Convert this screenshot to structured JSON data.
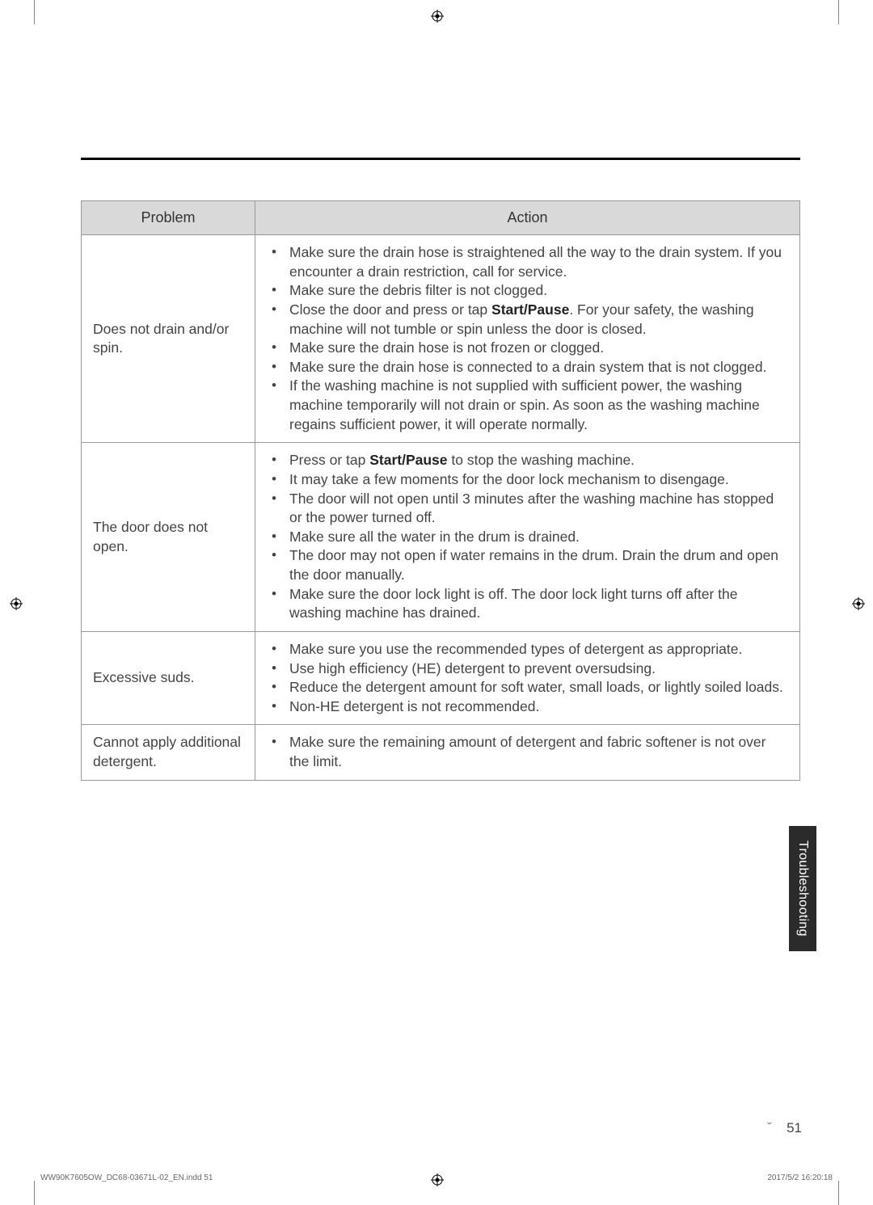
{
  "table": {
    "header_problem": "Problem",
    "header_action": "Action",
    "rows": [
      {
        "problem": "Does not drain and/or spin.",
        "actions_html": "<li>Make sure the drain hose is straightened all the way to the drain system. If you encounter a drain restriction, call for service.</li><li>Make sure the debris filter is not clogged.</li><li>Close the door and press or tap <span class='bold'>Start/Pause</span>. For your safety, the washing machine will not tumble or spin unless the door is closed.</li><li>Make sure the drain hose is not frozen or clogged.</li><li>Make sure the drain hose is connected to a drain system that is not clogged.</li><li>If the washing machine is not supplied with sufficient power, the washing machine temporarily will not drain or spin. As soon as the washing machine regains sufficient power, it will operate normally.</li>"
      },
      {
        "problem": "The door does not open.",
        "actions_html": "<li>Press or tap <span class='bold'>Start/Pause</span> to stop the washing machine.</li><li>It may take a few moments for the door lock mechanism to disengage.</li><li>The door will not open until 3 minutes after the washing machine has stopped or the power turned off.</li><li>Make sure all the water in the drum is drained.</li><li>The door may not open if water remains in the drum. Drain the drum and open the door manually.</li><li>Make sure the door lock light is off. The door lock light turns off after the washing machine has drained.</li>"
      },
      {
        "problem": "Excessive suds.",
        "actions_html": "<li>Make sure you use the recommended types of detergent as appropriate.</li><li>Use high efficiency (HE) detergent to prevent oversudsing.</li><li>Reduce the detergent amount for soft water, small loads, or lightly soiled loads.</li><li>Non-HE detergent is not recommended.</li>"
      },
      {
        "problem": "Cannot apply additional detergent.",
        "actions_html": "<li>Make sure the remaining amount of detergent and fabric softener is not over the limit.</li>"
      }
    ]
  },
  "side_tab": "Troubleshooting",
  "page_number": "51",
  "page_prefix": "˘",
  "footer_left": "WW90K7605OW_DC68-03671L-02_EN.indd   51",
  "footer_right": "2017/5/2   16:20:18"
}
